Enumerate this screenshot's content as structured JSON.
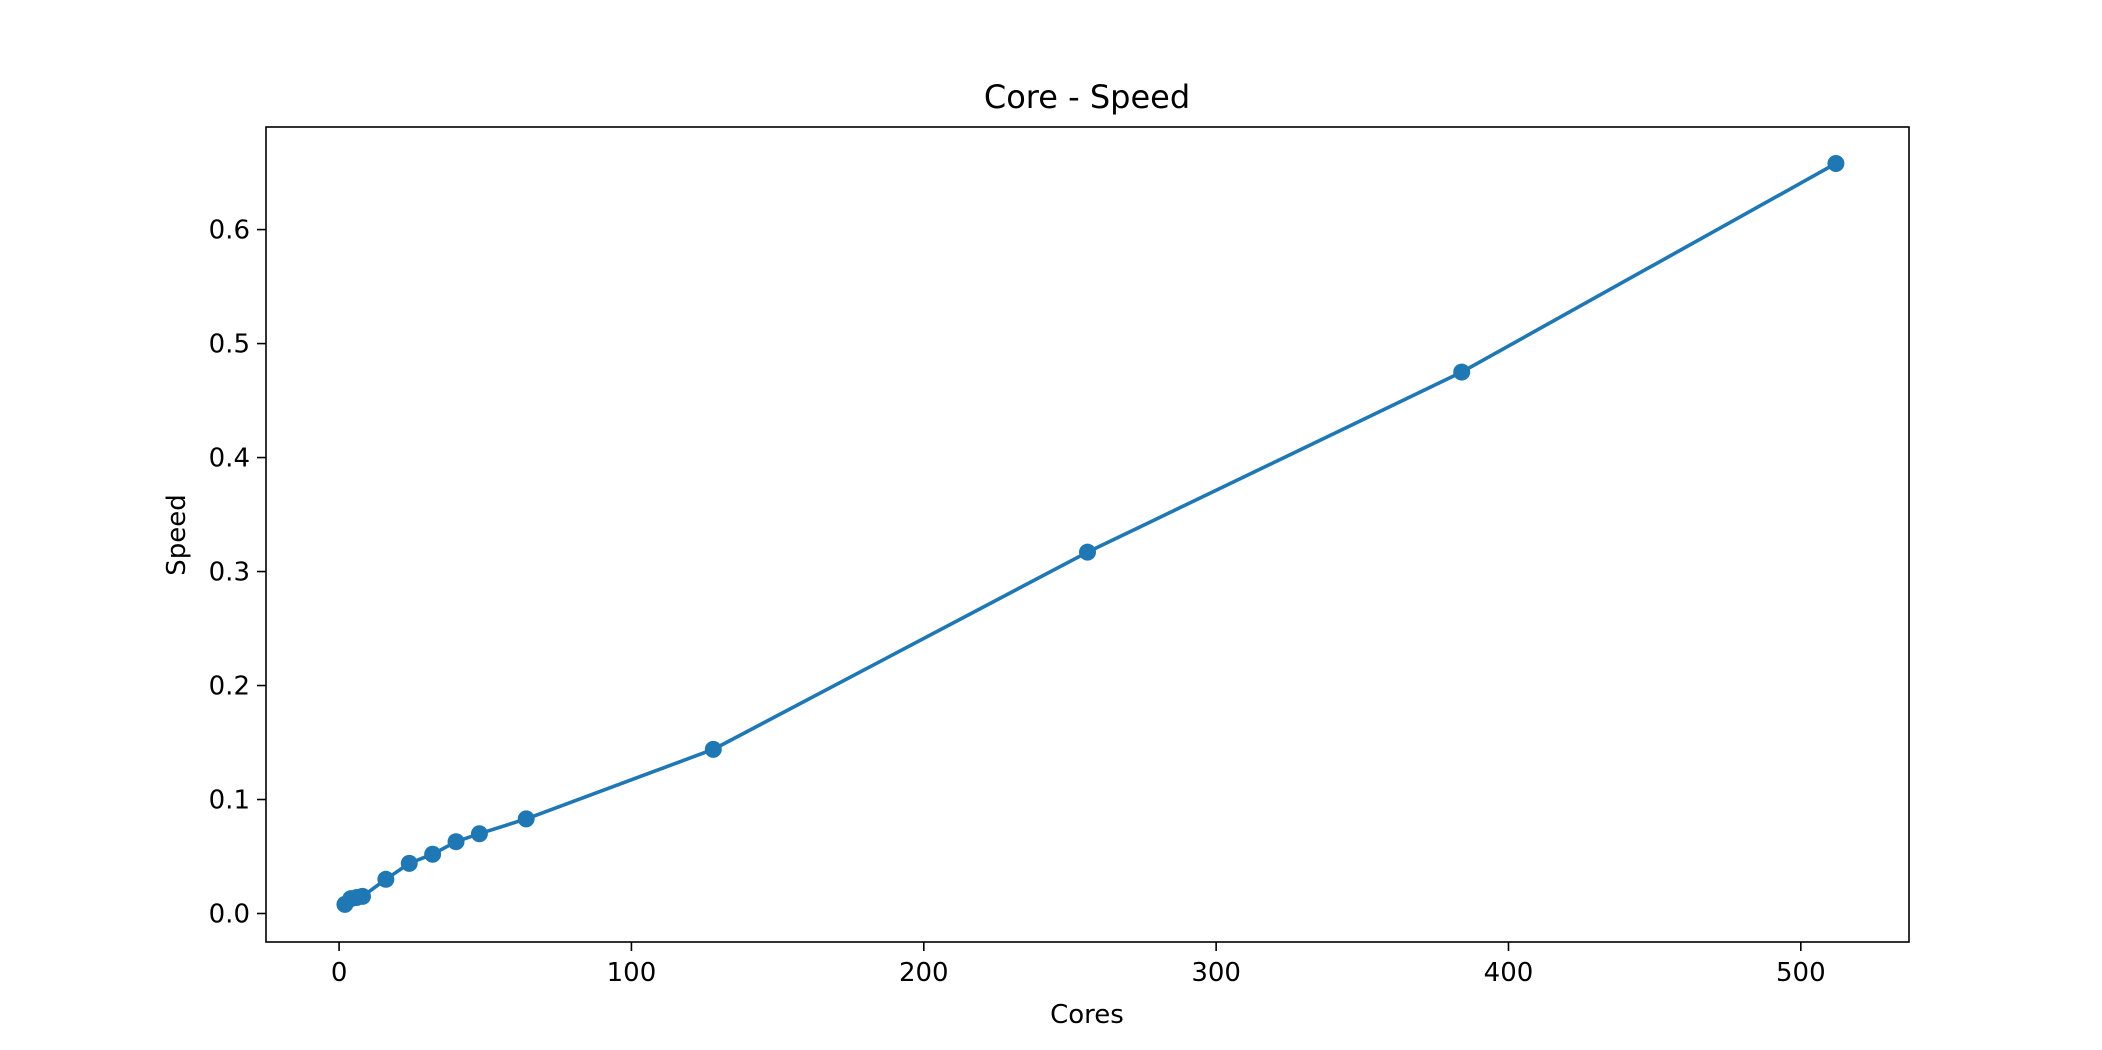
{
  "chart_data": {
    "type": "line",
    "title": "Core - Speed",
    "xlabel": "Cores",
    "ylabel": "Speed",
    "xlim": [
      -25,
      537
    ],
    "ylim": [
      -0.025,
      0.69
    ],
    "xticks": [
      0,
      100,
      200,
      300,
      400,
      500
    ],
    "yticks": [
      0.0,
      0.1,
      0.2,
      0.3,
      0.4,
      0.5,
      0.6
    ],
    "xtick_labels": [
      "0",
      "100",
      "200",
      "300",
      "400",
      "500"
    ],
    "ytick_labels": [
      "0.0",
      "0.1",
      "0.2",
      "0.3",
      "0.4",
      "0.5",
      "0.6"
    ],
    "grid": false,
    "markers": true,
    "colors": {
      "series": "#1f77b4",
      "axes": "#000000",
      "background": "#ffffff"
    },
    "series": [
      {
        "x": [
          2,
          4,
          6,
          8,
          16,
          24,
          32,
          40,
          48,
          64,
          128,
          256,
          384,
          512
        ],
        "y": [
          0.008,
          0.013,
          0.014,
          0.015,
          0.03,
          0.044,
          0.052,
          0.063,
          0.07,
          0.083,
          0.144,
          0.317,
          0.475,
          0.658
        ]
      }
    ]
  }
}
